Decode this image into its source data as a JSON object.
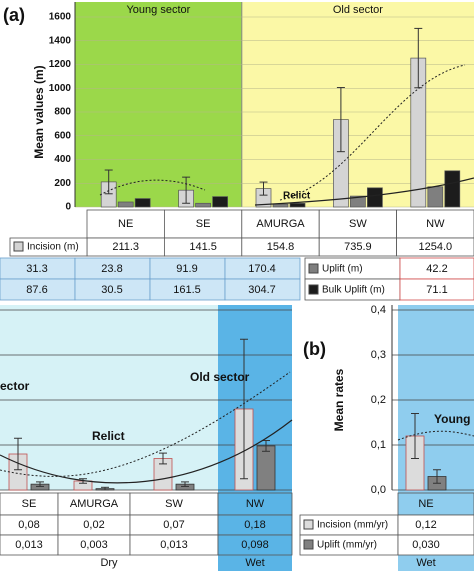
{
  "chart_data": [
    {
      "type": "bar",
      "label": "(a)",
      "ylabel": "Mean values (m)",
      "ylim": [
        0,
        1600
      ],
      "yticks": [
        0,
        200,
        400,
        600,
        800,
        1000,
        1200,
        1400,
        1600
      ],
      "grid": true,
      "sectors": [
        "Young sector",
        "Old sector"
      ],
      "categories": [
        "NE",
        "SE",
        "AMURGA",
        "SW",
        "NW"
      ],
      "annotations": [
        "Relict"
      ],
      "series": [
        {
          "name": "Incision (m)",
          "color": "#d4d4d4",
          "values": [
            211.3,
            141.5,
            154.8,
            735.9,
            1254.0
          ],
          "value_labels": [
            "211.3",
            "141.5",
            "154.8",
            "735.9",
            "1254.0"
          ],
          "errors": [
            100,
            110,
            55,
            270,
            250
          ]
        },
        {
          "name": "Uplift (m)",
          "color": "#7f7f7f",
          "values": [
            42.2,
            31.3,
            23.8,
            91.9,
            170.4
          ],
          "value_labels": [
            "42.2",
            "31.3",
            "23.8",
            "91.9",
            "170.4"
          ]
        },
        {
          "name": "Bulk Uplift (m)",
          "color": "#1c1c1c",
          "values": [
            71.1,
            87.6,
            30.5,
            161.5,
            304.7
          ],
          "value_labels": [
            "71.1",
            "87.6",
            "30.5",
            "161.5",
            "304.7"
          ]
        }
      ]
    },
    {
      "type": "bar",
      "ylim": [
        0,
        0.4
      ],
      "categories": [
        "SE",
        "AMURGA",
        "SW",
        "NW"
      ],
      "conditions": [
        "Dry",
        "Wet"
      ],
      "annotations": [
        "ector",
        "Old sector",
        "Relict"
      ],
      "series": [
        {
          "color": "#dcdcdc",
          "values": [
            0.08,
            0.02,
            0.07,
            0.18
          ],
          "value_labels": [
            "0,08",
            "0,02",
            "0,07",
            "0,18"
          ],
          "errors": [
            0.035,
            0.005,
            0.012,
            0.155
          ]
        },
        {
          "color": "#808080",
          "values": [
            0.013,
            0.003,
            0.013,
            0.098
          ],
          "value_labels": [
            "0,013",
            "0,003",
            "0,013",
            "0,098"
          ],
          "errors": [
            0.005,
            0.003,
            0.005,
            0.012
          ]
        }
      ]
    },
    {
      "type": "bar",
      "label": "(b)",
      "ylabel": "Mean rates",
      "ylim": [
        0,
        0.4
      ],
      "yticks": [
        {
          "value": 0,
          "label": "0,0"
        },
        {
          "value": 0.1,
          "label": "0,1"
        },
        {
          "value": 0.2,
          "label": "0,2"
        },
        {
          "value": 0.3,
          "label": "0,3"
        },
        {
          "value": 0.4,
          "label": "0,4"
        }
      ],
      "grid": true,
      "categories": [
        "NE"
      ],
      "conditions": [
        "Wet"
      ],
      "annotations": [
        "Young s"
      ],
      "series": [
        {
          "name": "Incision (mm/yr)",
          "color": "#dcdcdc",
          "values": [
            0.12
          ],
          "value_labels": [
            "0,12"
          ],
          "errors": [
            0.05
          ]
        },
        {
          "name": "Uplift (mm/yr)",
          "color": "#808080",
          "values": [
            0.03
          ],
          "value_labels": [
            "0,030"
          ],
          "errors": [
            0.015
          ]
        }
      ]
    }
  ]
}
